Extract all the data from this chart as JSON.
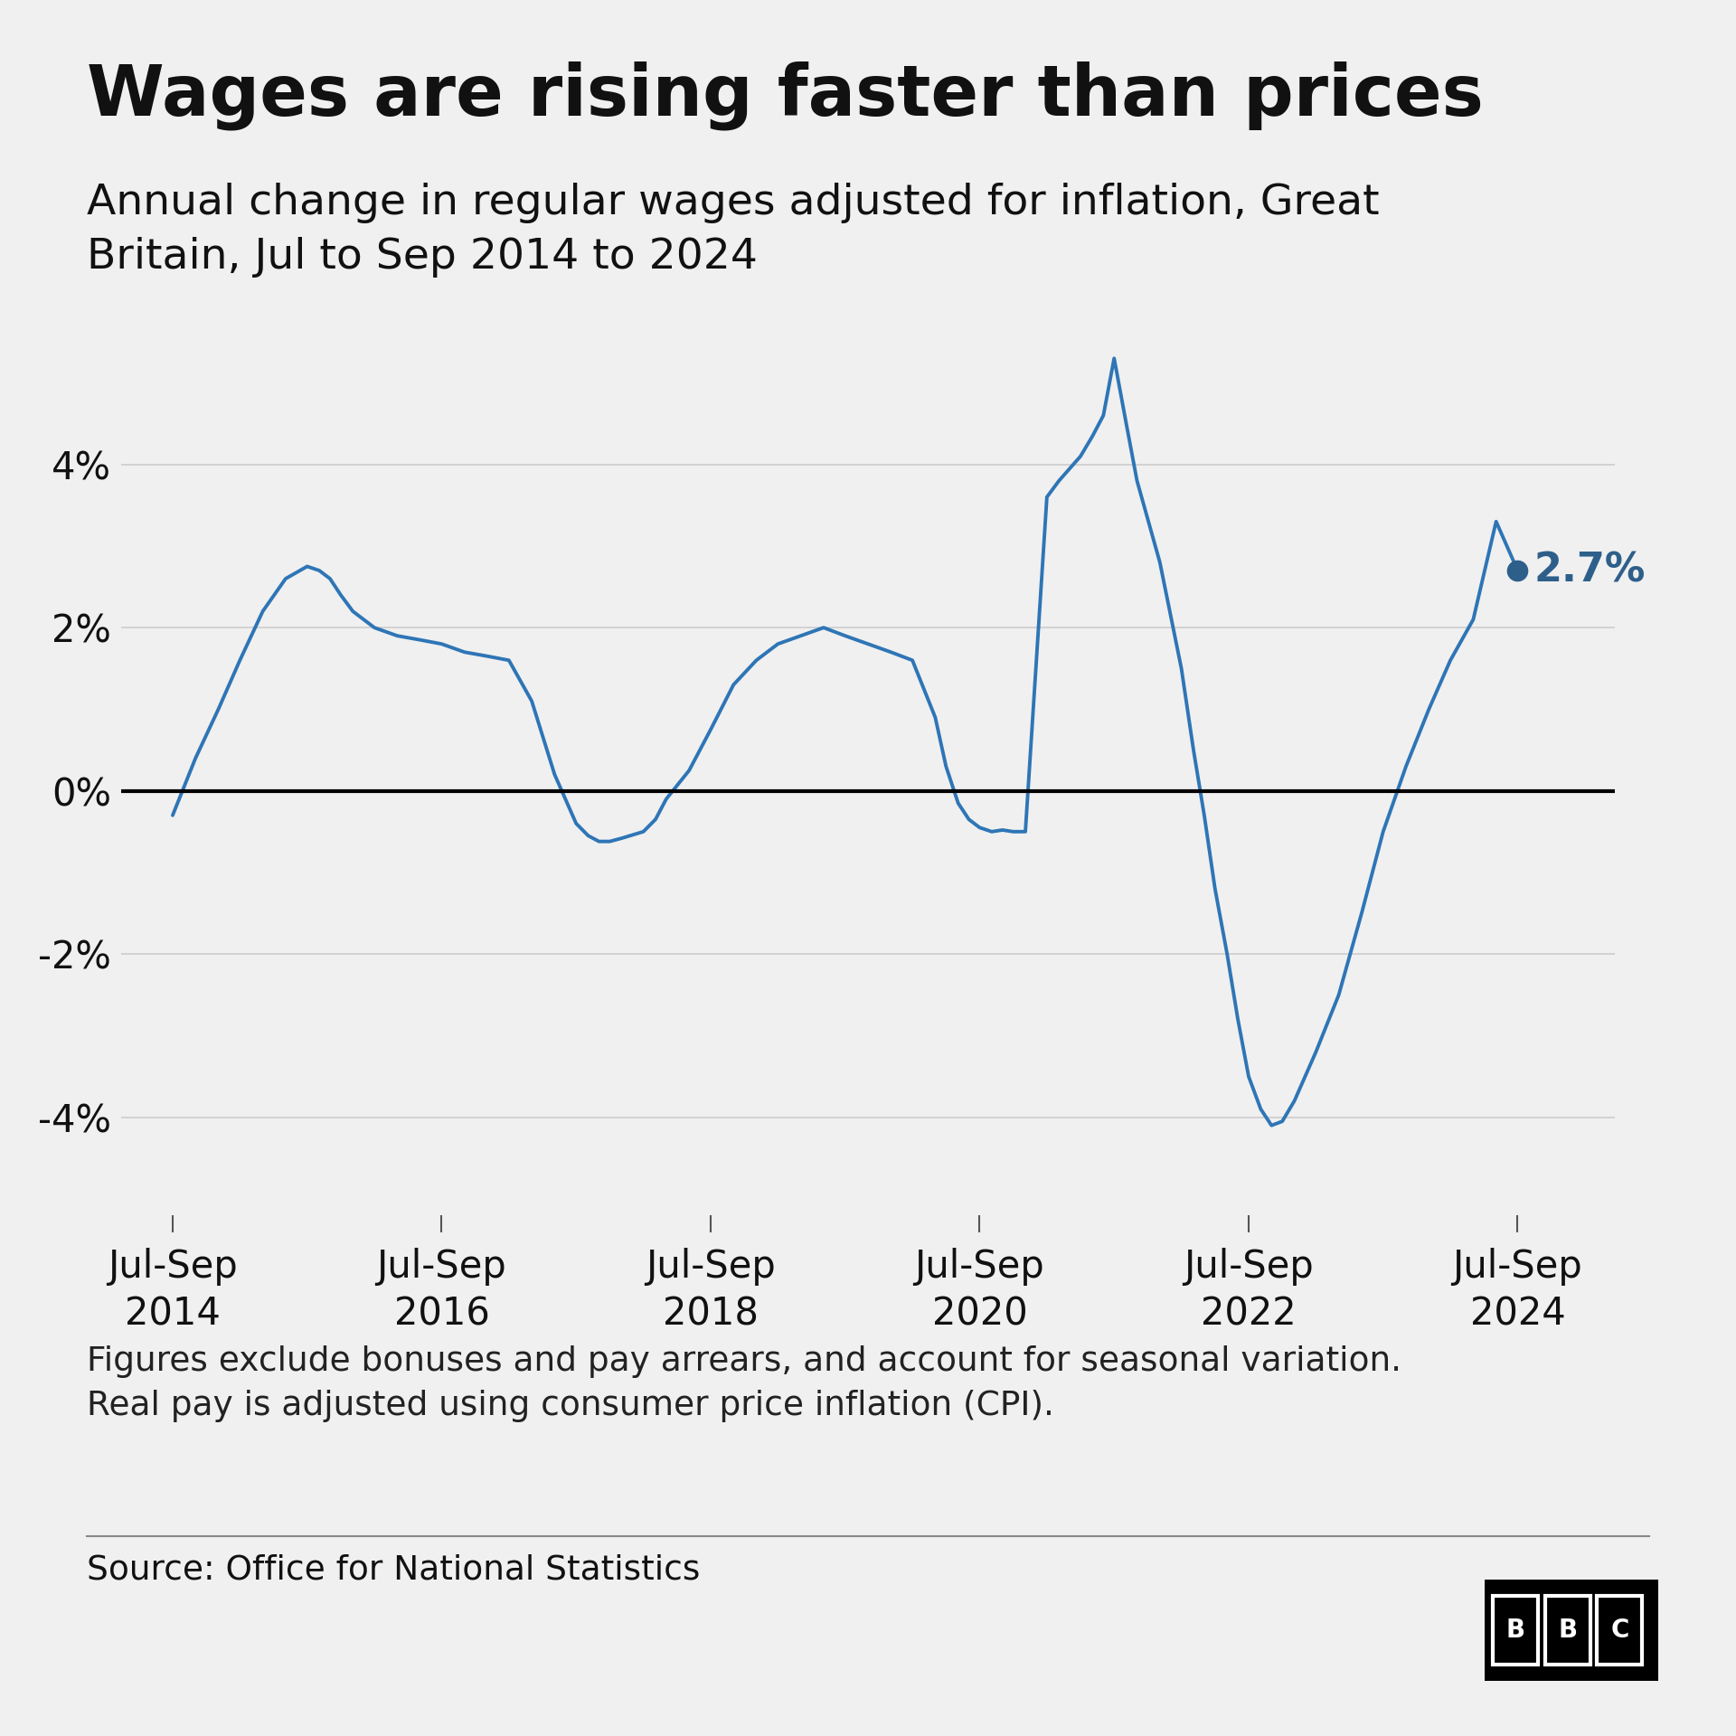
{
  "title": "Wages are rising faster than prices",
  "subtitle": "Annual change in regular wages adjusted for inflation, Great\nBritain, Jul to Sep 2014 to 2024",
  "footnote": "Figures exclude bonuses and pay arrears, and account for seasonal variation.\nReal pay is adjusted using consumer price inflation (CPI).",
  "source": "Source: Office for National Statistics",
  "background_color": "#f0f0f0",
  "line_color": "#2e75b6",
  "zero_line_color": "#000000",
  "grid_color": "#cccccc",
  "last_label": "2.7%",
  "last_label_color": "#2e5f8a",
  "x_tick_labels": [
    "Jul-Sep\n2014",
    "Jul-Sep\n2016",
    "Jul-Sep\n2018",
    "Jul-Sep\n2020",
    "Jul-Sep\n2022",
    "Jul-Sep\n2024"
  ],
  "x_tick_positions": [
    2014.58,
    2016.58,
    2018.58,
    2020.58,
    2022.58,
    2024.58
  ],
  "ylim": [
    -5.2,
    6.5
  ],
  "yticks": [
    -4,
    -2,
    0,
    2,
    4
  ],
  "ytick_labels": [
    "-4%",
    "-2%",
    "0%",
    "2%",
    "4%"
  ],
  "dates": [
    2014.58,
    2014.75,
    2014.92,
    2015.08,
    2015.25,
    2015.42,
    2015.58,
    2015.67,
    2015.75,
    2015.83,
    2015.92,
    2016.08,
    2016.25,
    2016.42,
    2016.58,
    2016.75,
    2016.92,
    2017.08,
    2017.25,
    2017.42,
    2017.58,
    2017.67,
    2017.75,
    2017.83,
    2017.92,
    2018.08,
    2018.17,
    2018.25,
    2018.42,
    2018.58,
    2018.75,
    2018.92,
    2019.08,
    2019.25,
    2019.42,
    2019.58,
    2019.75,
    2019.92,
    2020.08,
    2020.25,
    2020.33,
    2020.42,
    2020.5,
    2020.58,
    2020.67,
    2020.75,
    2020.83,
    2020.92,
    2021.08,
    2021.17,
    2021.25,
    2021.33,
    2021.42,
    2021.5,
    2021.58,
    2021.67,
    2021.75,
    2021.92,
    2022.08,
    2022.17,
    2022.25,
    2022.33,
    2022.42,
    2022.5,
    2022.58,
    2022.67,
    2022.75,
    2022.83,
    2022.92,
    2023.08,
    2023.25,
    2023.42,
    2023.58,
    2023.75,
    2023.92,
    2024.08,
    2024.25,
    2024.42,
    2024.58
  ],
  "values": [
    -0.3,
    0.4,
    1.0,
    1.6,
    2.2,
    2.6,
    2.75,
    2.7,
    2.6,
    2.4,
    2.2,
    2.0,
    1.9,
    1.85,
    1.8,
    1.7,
    1.65,
    1.6,
    1.1,
    0.2,
    -0.4,
    -0.55,
    -0.62,
    -0.62,
    -0.58,
    -0.5,
    -0.35,
    -0.1,
    0.25,
    0.75,
    1.3,
    1.6,
    1.8,
    1.9,
    2.0,
    1.9,
    1.8,
    1.7,
    1.6,
    0.9,
    0.3,
    -0.15,
    -0.35,
    -0.45,
    -0.5,
    -0.48,
    -0.5,
    -0.5,
    3.6,
    3.8,
    3.95,
    4.1,
    4.35,
    4.6,
    5.3,
    4.5,
    3.8,
    2.8,
    1.5,
    0.5,
    -0.3,
    -1.2,
    -2.0,
    -2.8,
    -3.5,
    -3.9,
    -4.1,
    -4.05,
    -3.8,
    -3.2,
    -2.5,
    -1.5,
    -0.5,
    0.3,
    1.0,
    1.6,
    2.1,
    3.3,
    2.7
  ]
}
